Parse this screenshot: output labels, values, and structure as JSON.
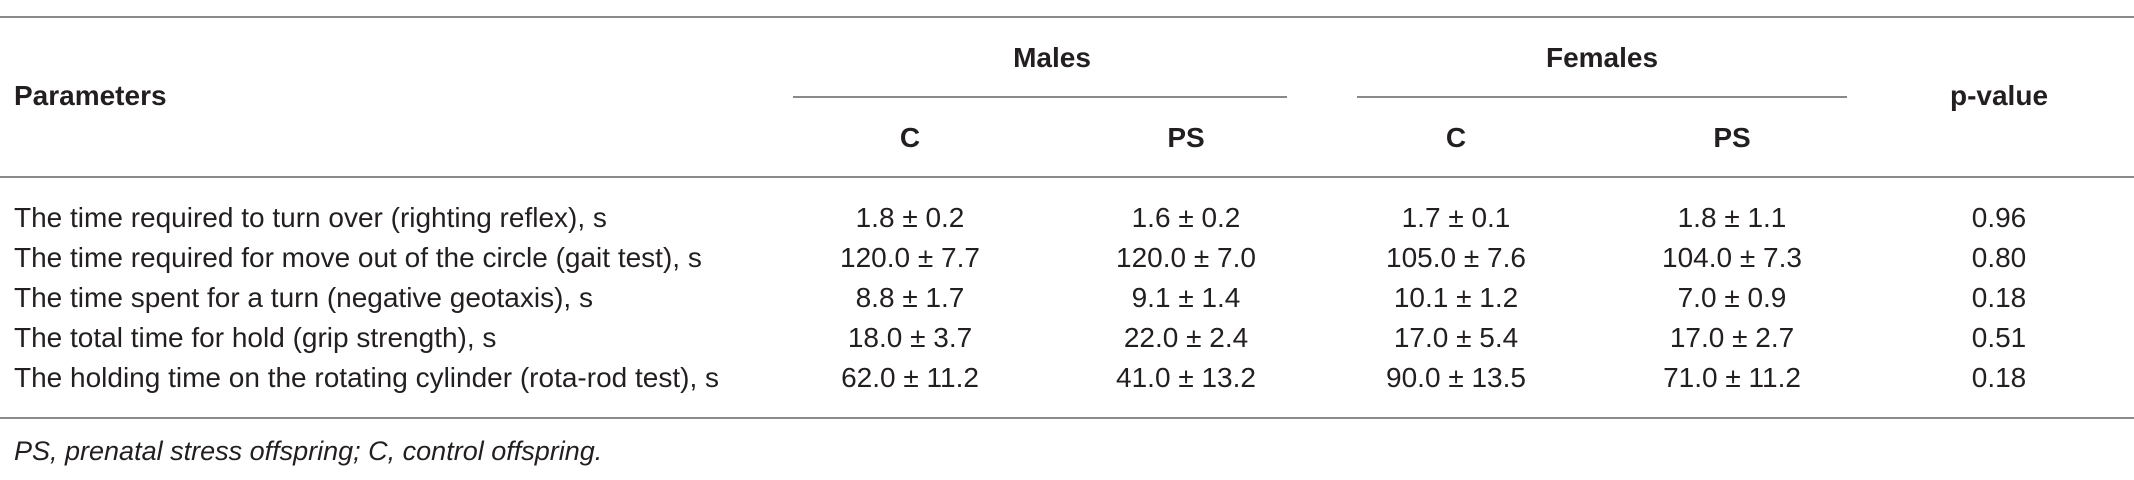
{
  "table": {
    "header": {
      "parameters": "Parameters",
      "males": "Males",
      "females": "Females",
      "pvalue": "p-value",
      "sub": [
        "C",
        "PS",
        "C",
        "PS"
      ]
    },
    "rows": [
      {
        "param": "The time required to turn over (righting reflex), s",
        "mc": "1.8 ± 0.2",
        "mps": "1.6 ± 0.2",
        "fc": "1.7 ± 0.1",
        "fps": "1.8 ± 1.1",
        "p": "0.96"
      },
      {
        "param": "The time required for move out of the circle (gait test), s",
        "mc": "120.0 ± 7.7",
        "mps": "120.0 ± 7.0",
        "fc": "105.0 ± 7.6",
        "fps": "104.0 ± 7.3",
        "p": "0.80"
      },
      {
        "param": "The time spent for a turn (negative geotaxis), s",
        "mc": "8.8 ± 1.7",
        "mps": "9.1 ± 1.4",
        "fc": "10.1 ± 1.2",
        "fps": "7.0 ± 0.9",
        "p": "0.18"
      },
      {
        "param": "The total time for hold (grip strength), s",
        "mc": "18.0 ± 3.7",
        "mps": "22.0 ± 2.4",
        "fc": "17.0 ± 5.4",
        "fps": "17.0 ± 2.7",
        "p": "0.51"
      },
      {
        "param": "The holding time on the rotating cylinder (rota-rod test), s",
        "mc": "62.0 ± 11.2",
        "mps": "41.0 ± 13.2",
        "fc": "90.0 ± 13.5",
        "fps": "71.0 ± 11.2",
        "p": "0.18"
      }
    ],
    "footnote": "PS, prenatal stress offspring; C, control offspring."
  }
}
